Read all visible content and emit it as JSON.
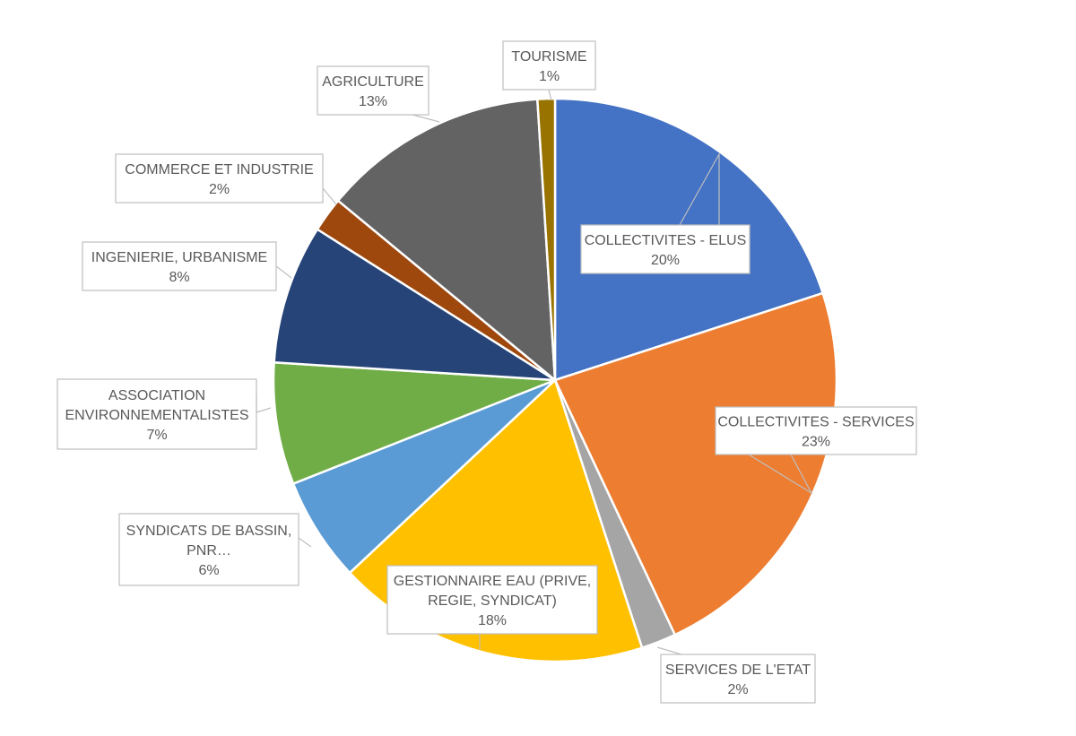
{
  "chart_data": {
    "type": "pie",
    "title": "",
    "slices": [
      {
        "label": "COLLECTIVITES - ELUS",
        "value": 20,
        "value_label": "20%",
        "color": "#4472C4"
      },
      {
        "label": "COLLECTIVITES - SERVICES",
        "value": 23,
        "value_label": "23%",
        "color": "#ED7D31"
      },
      {
        "label": "SERVICES DE L'ETAT",
        "value": 2,
        "value_label": "2%",
        "color": "#A5A5A5"
      },
      {
        "label": "GESTIONNAIRE EAU (PRIVE, REGIE, SYNDICAT)",
        "value": 18,
        "value_label": "18%",
        "color": "#FFC000"
      },
      {
        "label": "SYNDICATS DE BASSIN, PNR…",
        "value": 6,
        "value_label": "6%",
        "color": "#5B9BD5"
      },
      {
        "label": "ASSOCIATION ENVIRONNEMENTALISTES",
        "value": 7,
        "value_label": "7%",
        "color": "#70AD47"
      },
      {
        "label": "INGENIERIE, URBANISME",
        "value": 8,
        "value_label": "8%",
        "color": "#264478"
      },
      {
        "label": "COMMERCE ET INDUSTRIE",
        "value": 2,
        "value_label": "2%",
        "color": "#9E480E"
      },
      {
        "label": "AGRICULTURE",
        "value": 13,
        "value_label": "13%",
        "color": "#636363"
      },
      {
        "label": "TOURISME",
        "value": 1,
        "value_label": "1%",
        "color": "#997300"
      }
    ]
  }
}
